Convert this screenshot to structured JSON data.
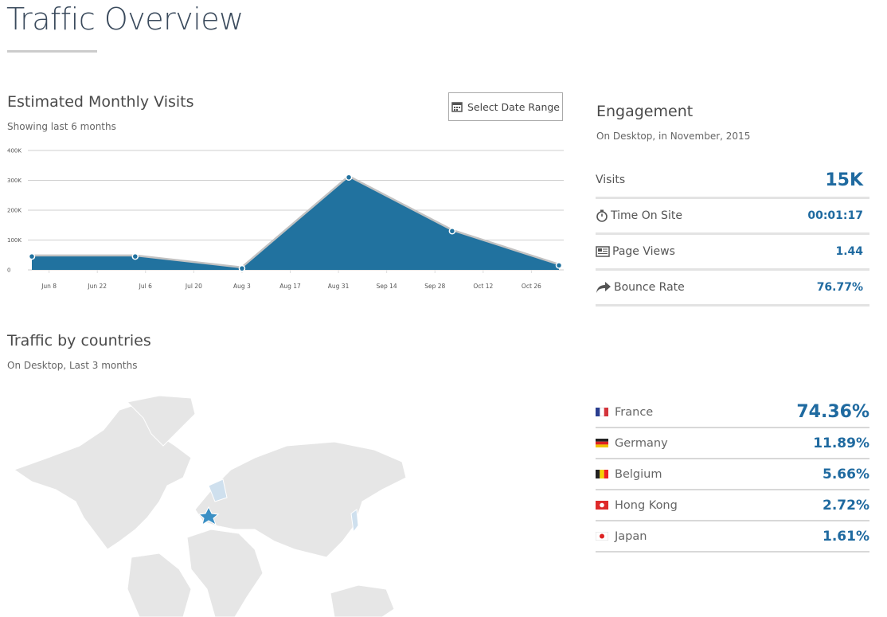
{
  "header": {
    "title": "Traffic Overview"
  },
  "visits_section": {
    "title": "Estimated Monthly Visits",
    "subtitle": "Showing last 6 months",
    "button": "Select Date Range"
  },
  "chart_data": {
    "type": "area",
    "x": [
      "Jun 3",
      "Jul 3",
      "Aug 3",
      "Sep 3",
      "Oct 3",
      "Nov 3"
    ],
    "values": [
      45000,
      45000,
      5000,
      310000,
      130000,
      15000
    ],
    "color": "#21729f",
    "line_color": "#c2c2c2",
    "xlim": [
      "Jun 3",
      "Nov 3"
    ],
    "xticks": [
      "Jun 8",
      "Jun 22",
      "Jul 6",
      "Jul 20",
      "Aug 3",
      "Aug 17",
      "Aug 31",
      "Sep 14",
      "Sep 28",
      "Oct 12",
      "Oct 26"
    ],
    "ylim": [
      0,
      400000
    ],
    "yticks": [
      0,
      {
        "value": 100000,
        "label": "100K"
      },
      {
        "value": 200000,
        "label": "200K"
      },
      {
        "value": 300000,
        "label": "300K"
      },
      {
        "value": 400000,
        "label": "400K"
      }
    ],
    "grid": true
  },
  "engagement": {
    "title": "Engagement",
    "subtitle": "On Desktop, in November, 2015",
    "rows": [
      {
        "label": "Visits",
        "value": "15K"
      },
      {
        "label": "Time On Site",
        "value": "00:01:17"
      },
      {
        "label": "Page Views",
        "value": "1.44"
      },
      {
        "label": "Bounce Rate",
        "value": "76.77%"
      }
    ]
  },
  "countries": {
    "title": "Traffic by countries",
    "subtitle": "On Desktop, Last 3 months",
    "rows": [
      {
        "name": "France",
        "share": "74.36%"
      },
      {
        "name": "Germany",
        "share": "11.89%"
      },
      {
        "name": "Belgium",
        "share": "5.66%"
      },
      {
        "name": "Hong Kong",
        "share": "2.72%"
      },
      {
        "name": "Japan",
        "share": "1.61%"
      }
    ]
  }
}
